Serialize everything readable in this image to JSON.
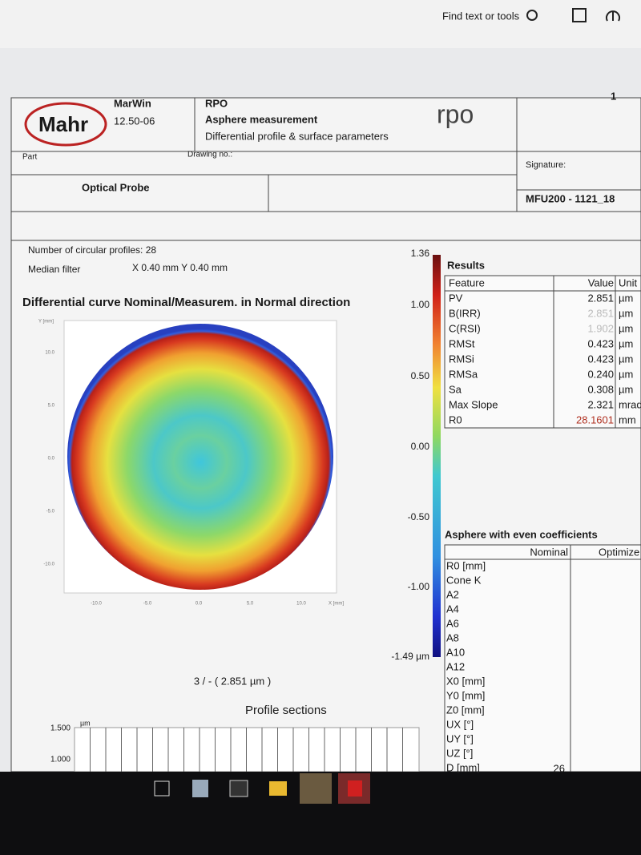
{
  "toolbar": {
    "search": "Find text or tools"
  },
  "header": {
    "software": "MarWin",
    "version": "12.50-06",
    "logo": "Mahr",
    "title": "RPO",
    "subtitle": "Asphere measurement",
    "description": "Differential profile & surface parameters",
    "company_logo": "rpo",
    "page": "1",
    "part_label": "Part",
    "drawing_label": "Drawing no.:",
    "part_name": "Optical Probe",
    "signature_label": "Signature:",
    "id": "MFU200 - 1121_18"
  },
  "info": {
    "profiles": "Number of circular profiles: 28",
    "filter_label": "Median filter",
    "filter_value": "X  0.40   mm    Y  0.40   mm"
  },
  "plot": {
    "title": "Differential curve Nominal/Measurem. in Normal direction",
    "y_label": "Y [mm]",
    "x_label": "X [mm]",
    "yticks": [
      "10.0",
      "5.0",
      "0.0",
      "-5.0",
      "-10.0"
    ],
    "xticks": [
      "-10.0",
      "-5.0",
      "0.0",
      "5.0",
      "10.0"
    ],
    "caption": "3 / - ( 2.851 µm )"
  },
  "colorbar": {
    "ticks": [
      "1.36",
      "1.00",
      "0.50",
      "0.00",
      "-0.50",
      "-1.00",
      "-1.49 µm"
    ]
  },
  "results": {
    "title": "Results",
    "columns": [
      "Feature",
      "Value",
      "Unit"
    ],
    "rows": [
      [
        "PV",
        "2.851",
        "µm"
      ],
      [
        "B(IRR)",
        "2.851",
        "µm"
      ],
      [
        "C(RSI)",
        "1.902",
        "µm"
      ],
      [
        "RMSt",
        "0.423",
        "µm"
      ],
      [
        "RMSi",
        "0.423",
        "µm"
      ],
      [
        "RMSa",
        "0.240",
        "µm"
      ],
      [
        "Sa",
        "0.308",
        "µm"
      ],
      [
        "Max Slope",
        "2.321",
        "mrad"
      ],
      [
        "R0",
        "28.1601",
        "mm"
      ]
    ]
  },
  "asphere": {
    "title": "Asphere with even coefficients",
    "columns": [
      "Nominal",
      "Optimize"
    ],
    "rows": [
      "R0 [mm]",
      "Cone K",
      "A2",
      "A4",
      "A6",
      "A8",
      "A10",
      "A12",
      "X0 [mm]",
      "Y0 [mm]",
      "Z0 [mm]",
      "UX [°]",
      "UY [°]",
      "UZ [°]",
      "D [mm]"
    ],
    "d_nominal": "26"
  },
  "profile_sections": {
    "title": "Profile sections",
    "unit": "µm",
    "yticks": [
      "1.500",
      "1.000"
    ]
  }
}
